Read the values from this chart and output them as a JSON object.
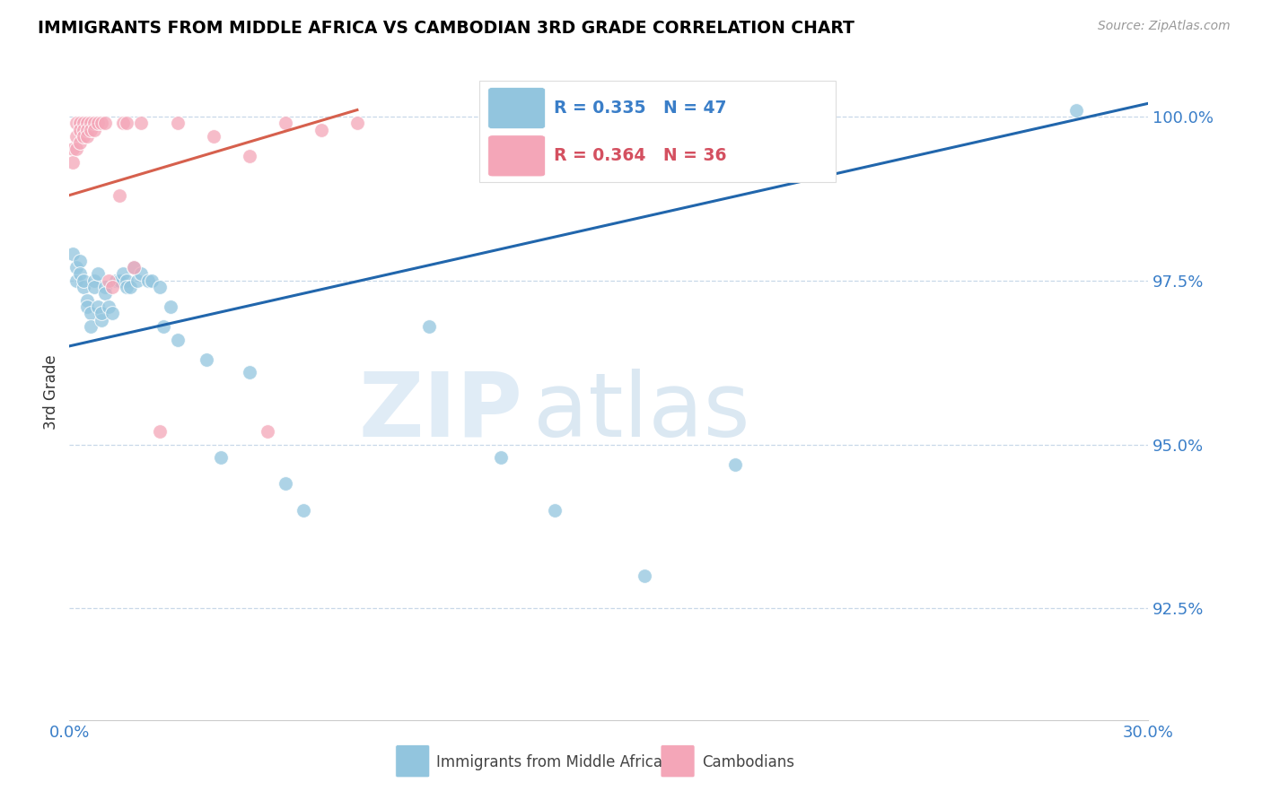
{
  "title": "IMMIGRANTS FROM MIDDLE AFRICA VS CAMBODIAN 3RD GRADE CORRELATION CHART",
  "source": "Source: ZipAtlas.com",
  "ylabel": "3rd Grade",
  "ytick_labels": [
    "92.5%",
    "95.0%",
    "97.5%",
    "100.0%"
  ],
  "ytick_values": [
    0.925,
    0.95,
    0.975,
    1.0
  ],
  "xmin": 0.0,
  "xmax": 0.3,
  "ymin": 0.908,
  "ymax": 1.008,
  "blue_R": "0.335",
  "blue_N": "47",
  "pink_R": "0.364",
  "pink_N": "36",
  "legend_label_blue": "Immigrants from Middle Africa",
  "legend_label_pink": "Cambodians",
  "blue_color": "#92c5de",
  "pink_color": "#f4a6b8",
  "blue_line_color": "#2166ac",
  "pink_line_color": "#d6604d",
  "watermark_zip": "ZIP",
  "watermark_atlas": "atlas",
  "blue_x": [
    0.001,
    0.002,
    0.002,
    0.003,
    0.003,
    0.004,
    0.004,
    0.005,
    0.005,
    0.006,
    0.006,
    0.007,
    0.007,
    0.008,
    0.008,
    0.009,
    0.009,
    0.01,
    0.01,
    0.011,
    0.012,
    0.013,
    0.014,
    0.015,
    0.016,
    0.016,
    0.017,
    0.018,
    0.019,
    0.02,
    0.022,
    0.023,
    0.025,
    0.026,
    0.028,
    0.03,
    0.038,
    0.042,
    0.05,
    0.06,
    0.065,
    0.1,
    0.12,
    0.135,
    0.16,
    0.185,
    0.28
  ],
  "blue_y": [
    0.979,
    0.975,
    0.977,
    0.978,
    0.976,
    0.974,
    0.975,
    0.972,
    0.971,
    0.97,
    0.968,
    0.975,
    0.974,
    0.976,
    0.971,
    0.969,
    0.97,
    0.974,
    0.973,
    0.971,
    0.97,
    0.975,
    0.975,
    0.976,
    0.975,
    0.974,
    0.974,
    0.977,
    0.975,
    0.976,
    0.975,
    0.975,
    0.974,
    0.968,
    0.971,
    0.966,
    0.963,
    0.948,
    0.961,
    0.944,
    0.94,
    0.968,
    0.948,
    0.94,
    0.93,
    0.947,
    1.001
  ],
  "pink_x": [
    0.001,
    0.001,
    0.002,
    0.002,
    0.002,
    0.003,
    0.003,
    0.003,
    0.004,
    0.004,
    0.004,
    0.005,
    0.005,
    0.005,
    0.006,
    0.006,
    0.007,
    0.007,
    0.008,
    0.009,
    0.01,
    0.011,
    0.012,
    0.014,
    0.015,
    0.016,
    0.018,
    0.02,
    0.025,
    0.03,
    0.04,
    0.05,
    0.055,
    0.06,
    0.07,
    0.08
  ],
  "pink_y": [
    0.995,
    0.993,
    0.999,
    0.997,
    0.995,
    0.999,
    0.998,
    0.996,
    0.999,
    0.998,
    0.997,
    0.999,
    0.998,
    0.997,
    0.999,
    0.998,
    0.999,
    0.998,
    0.999,
    0.999,
    0.999,
    0.975,
    0.974,
    0.988,
    0.999,
    0.999,
    0.977,
    0.999,
    0.952,
    0.999,
    0.997,
    0.994,
    0.952,
    0.999,
    0.998,
    0.999
  ],
  "blue_trend_x": [
    0.0,
    0.3
  ],
  "blue_trend_y": [
    0.965,
    1.002
  ],
  "pink_trend_x": [
    0.0,
    0.08
  ],
  "pink_trend_y": [
    0.988,
    1.001
  ]
}
